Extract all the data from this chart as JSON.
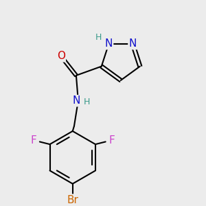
{
  "bg_color": "#ececec",
  "bond_color": "#000000",
  "bond_width": 1.5,
  "atom_colors": {
    "N": "#1010cc",
    "NH_teal": "#3a9a8a",
    "O": "#cc0000",
    "F": "#cc44cc",
    "Br": "#cc6600",
    "H_teal": "#3a9a8a"
  },
  "font_size": 11,
  "font_size_H": 9
}
